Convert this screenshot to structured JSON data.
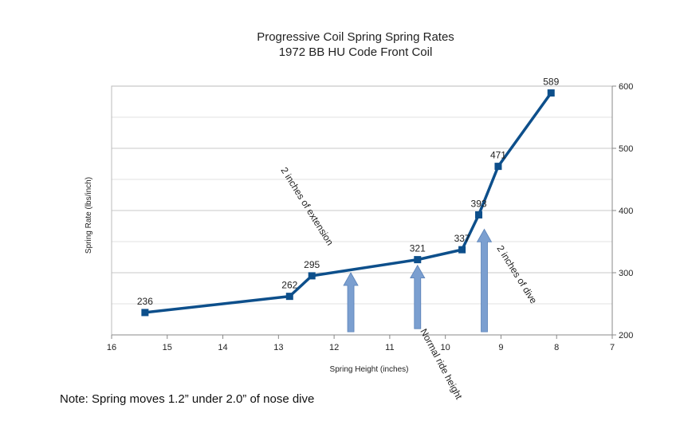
{
  "chart_data": {
    "type": "line",
    "title": "Progressive Coil Spring Spring Rates",
    "subtitle": "1972 BB HU Code Front Coil",
    "xlabel": "Spring Height (inches)",
    "ylabel": "Spring Rate (lbs/inch)",
    "xlim": [
      16,
      7
    ],
    "x_reversed": true,
    "ylim": [
      200,
      600
    ],
    "y_axis_side": "right",
    "grid": true,
    "x_ticks": [
      "16",
      "15",
      "14",
      "13",
      "12",
      "11",
      "10",
      "9",
      "8",
      "7"
    ],
    "y_ticks": [
      "200",
      "300",
      "400",
      "500",
      "600"
    ],
    "series": [
      {
        "color": "#0d4f8b",
        "x": [
          15.4,
          12.8,
          12.4,
          10.5,
          9.7,
          9.4,
          9.05,
          8.1
        ],
        "values": [
          236,
          262,
          295,
          321,
          337,
          393,
          471,
          589
        ],
        "labels": [
          "236",
          "262",
          "295",
          "321",
          "337",
          "393",
          "471",
          "589"
        ]
      }
    ],
    "annotations": [
      {
        "text": "2 inches of extension",
        "arrow_x": 11.7,
        "arrow_from": 205,
        "arrow_to": 300
      },
      {
        "text": "Normal ride height",
        "arrow_x": 10.5,
        "arrow_from": 210,
        "arrow_to": 312
      },
      {
        "text": "2 inches of dive",
        "arrow_x": 9.3,
        "arrow_from": 205,
        "arrow_to": 370
      }
    ],
    "arrow_color": "#7b9fd0"
  },
  "note": "Note: Spring moves 1.2” under 2.0” of nose dive"
}
